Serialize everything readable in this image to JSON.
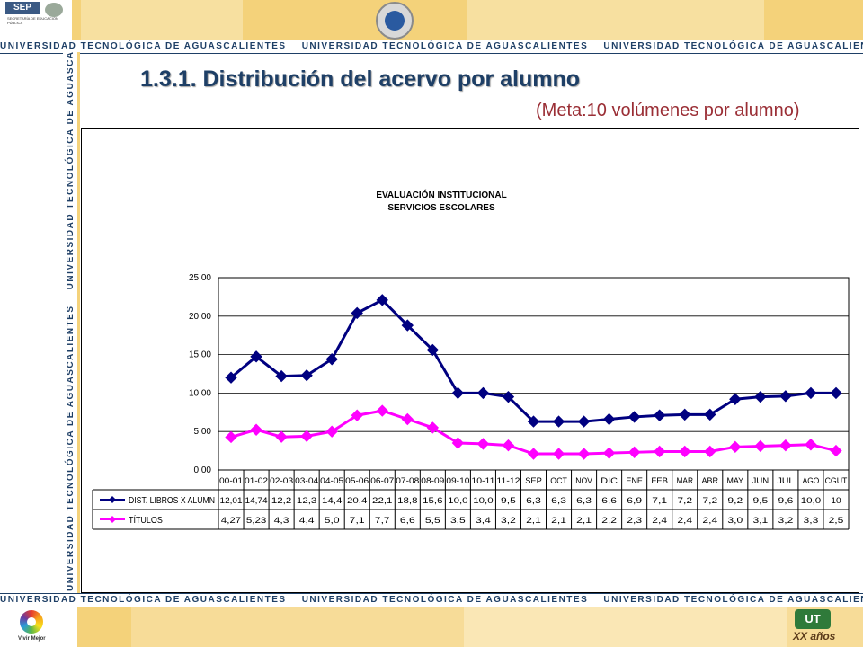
{
  "header": {
    "sep_logo_text": "SEP",
    "sep_logo_sub": "SECRETARÍA DE EDUCACIÓN PÚBLICA",
    "stripe_text": "UNIVERSIDAD TECNOLÓGICA DE AGUASCALIENTES"
  },
  "slide": {
    "title": "1.3.1. Distribución del acervo por alumno",
    "subtitle": "(Meta:10 volúmenes por alumno)"
  },
  "footer": {
    "vivir_mejor": "Vivir Mejor",
    "ut_logo": "UT",
    "anos": "XX años"
  },
  "colors": {
    "series1": "#000080",
    "series2": "#ff00ff",
    "stripe": "#1e3f66",
    "title": "#1e3f66",
    "subtitle": "#9a2e35"
  },
  "chart_data": {
    "type": "line",
    "title": "EVALUACIÓN INSTITUCIONAL\nSERVICIOS ESCOLARES",
    "ylim": [
      0,
      25
    ],
    "yticks": [
      "0,00",
      "5,00",
      "10,00",
      "15,00",
      "20,00",
      "25,00"
    ],
    "grid": true,
    "categories": [
      "00-01",
      "01-02",
      "02-03",
      "03-04",
      "04-05",
      "05-06",
      "06-07",
      "07-08",
      "08-09",
      "09-10",
      "10-11",
      "11-12",
      "SEP",
      "OCT",
      "NOV",
      "DIC",
      "ENE",
      "FEB",
      "MAR",
      "ABR",
      "MAY",
      "JUN",
      "JUL",
      "AGO",
      "CGUT"
    ],
    "series": [
      {
        "name": "DIST. LIBROS X ALUMN",
        "values": [
          12.01,
          14.74,
          12.2,
          12.3,
          14.4,
          20.4,
          22.1,
          18.8,
          15.6,
          10.0,
          10.0,
          9.5,
          6.3,
          6.3,
          6.3,
          6.6,
          6.9,
          7.1,
          7.2,
          7.2,
          9.2,
          9.5,
          9.6,
          10.0,
          10
        ],
        "labels": [
          "12,01",
          "14,74",
          "12,2",
          "12,3",
          "14,4",
          "20,4",
          "22,1",
          "18,8",
          "15,6",
          "10,0",
          "10,0",
          "9,5",
          "6,3",
          "6,3",
          "6,3",
          "6,6",
          "6,9",
          "7,1",
          "7,2",
          "7,2",
          "9,2",
          "9,5",
          "9,6",
          "10,0",
          "10"
        ]
      },
      {
        "name": "TÍTULOS",
        "values": [
          4.27,
          5.23,
          4.3,
          4.4,
          5.0,
          7.1,
          7.7,
          6.6,
          5.5,
          3.5,
          3.4,
          3.2,
          2.1,
          2.1,
          2.1,
          2.2,
          2.3,
          2.4,
          2.4,
          2.4,
          3.0,
          3.1,
          3.2,
          3.3,
          2.5
        ],
        "labels": [
          "4,27",
          "5,23",
          "4,3",
          "4,4",
          "5,0",
          "7,1",
          "7,7",
          "6,6",
          "5,5",
          "3,5",
          "3,4",
          "3,2",
          "2,1",
          "2,1",
          "2,1",
          "2,2",
          "2,3",
          "2,4",
          "2,4",
          "2,4",
          "3,0",
          "3,1",
          "3,2",
          "3,3",
          "2,5"
        ]
      }
    ]
  }
}
